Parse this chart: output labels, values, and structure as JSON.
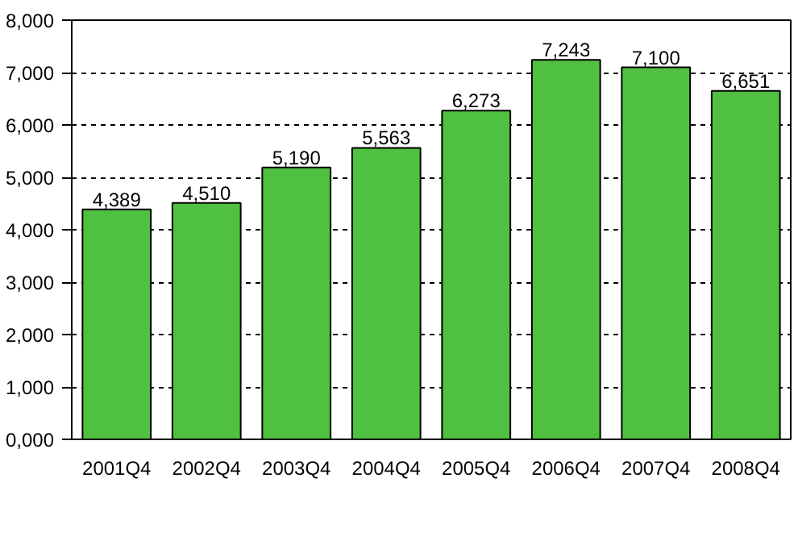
{
  "chart_data": {
    "type": "bar",
    "categories": [
      "2001Q4",
      "2002Q4",
      "2003Q4",
      "2004Q4",
      "2005Q4",
      "2006Q4",
      "2007Q4",
      "2008Q4"
    ],
    "values": [
      4389,
      4510,
      5190,
      5563,
      6273,
      7243,
      7100,
      6651
    ],
    "value_labels": [
      "4,389",
      "4,510",
      "5,190",
      "5,563",
      "6,273",
      "7,243",
      "7,100",
      "6,651"
    ],
    "color": "#50c040",
    "ylim": [
      0,
      8000
    ],
    "yticks": [
      {
        "value": 0,
        "label": "0,000"
      },
      {
        "value": 1000,
        "label": "1,000"
      },
      {
        "value": 2000,
        "label": "2,000"
      },
      {
        "value": 3000,
        "label": "3,000"
      },
      {
        "value": 4000,
        "label": "4,000"
      },
      {
        "value": 5000,
        "label": "5,000"
      },
      {
        "value": 6000,
        "label": "6,000"
      },
      {
        "value": 7000,
        "label": "7,000"
      },
      {
        "value": 8000,
        "label": "8,000"
      }
    ],
    "grid": "y"
  }
}
